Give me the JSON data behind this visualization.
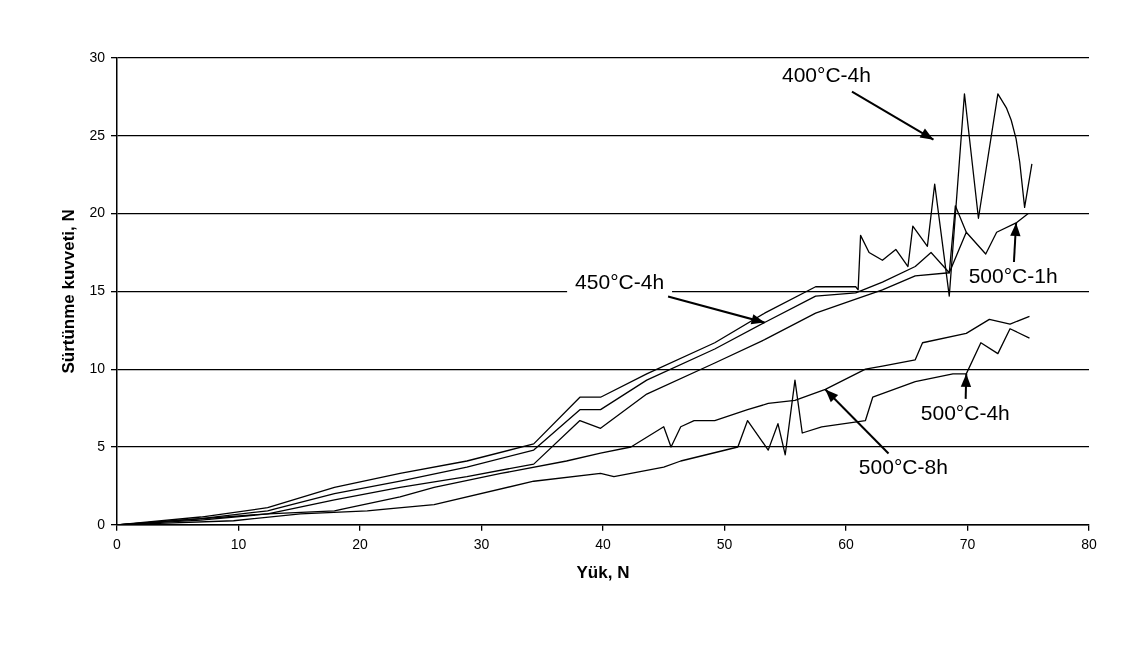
{
  "chart_data": {
    "type": "line",
    "xlabel": "Yük, N",
    "ylabel": "Sürtünme kuvveti, N",
    "xlim": [
      0,
      80
    ],
    "xticks": [
      0,
      10,
      20,
      30,
      40,
      50,
      60,
      70,
      80
    ],
    "ylim": [
      0,
      30
    ],
    "yticks": [
      0,
      5,
      10,
      15,
      20,
      25,
      30
    ],
    "grid": "y",
    "legend": false,
    "marker": "none",
    "line_style": "solid",
    "series": [
      {
        "color": "#000000",
        "x": [
          0,
          6.9,
          12.4,
          17.9,
          23.3,
          28.8,
          34.3,
          38.1,
          39.8,
          43.6,
          49.2,
          53.3,
          57.5,
          60.8,
          61.0,
          61.2,
          61.9,
          63.0,
          64.1,
          65.1,
          65.5,
          66.7,
          67.3,
          68.5,
          69.75,
          70.9,
          72.5,
          73.2,
          73.6,
          74.0,
          74.3,
          74.7,
          75.3
        ],
        "values": [
          0,
          0.5,
          1.1,
          2.4,
          3.3,
          4.1,
          5.2,
          8.2,
          8.2,
          9.7,
          11.7,
          13.6,
          15.3,
          15.3,
          15.1,
          18.6,
          17.5,
          17.0,
          17.7,
          16.6,
          19.2,
          17.9,
          21.9,
          14.7,
          27.7,
          19.7,
          27.7,
          26.8,
          26.0,
          24.8,
          23.3,
          20.4,
          23.2
        ]
      },
      {
        "color": "#000000",
        "x": [
          0,
          6.9,
          12.4,
          17.9,
          23.3,
          28.8,
          34.3,
          38.1,
          39.8,
          43.6,
          49.2,
          53.3,
          57.5,
          60.8,
          63.0,
          65.7,
          67.0,
          68.5,
          69.0,
          69.9
        ],
        "values": [
          0,
          0.4,
          0.9,
          2.0,
          2.8,
          3.7,
          4.8,
          7.4,
          7.4,
          9.3,
          11.3,
          13.0,
          14.7,
          14.9,
          15.6,
          16.6,
          17.5,
          16.2,
          20.5,
          18.8
        ]
      },
      {
        "color": "#000000",
        "x": [
          0,
          6.9,
          12.4,
          17.9,
          23.3,
          28.8,
          34.3,
          38.1,
          39.8,
          43.6,
          49.2,
          53.3,
          57.5,
          60.8,
          63.0,
          65.7,
          68.5,
          69.9,
          71.5,
          72.4,
          74.0,
          75.0
        ],
        "values": [
          0,
          0.3,
          0.7,
          1.6,
          2.4,
          3.1,
          3.9,
          6.7,
          6.2,
          8.4,
          10.4,
          11.9,
          13.6,
          14.5,
          15.1,
          16.0,
          16.2,
          18.8,
          17.4,
          18.8,
          19.4,
          20.0
        ]
      },
      {
        "color": "#000000",
        "x": [
          0,
          12.4,
          17.9,
          23.3,
          26.1,
          31.6,
          37.0,
          39.8,
          42.3,
          45.0,
          45.6,
          46.4,
          47.5,
          49.2,
          51.9,
          53.6,
          55.8,
          58.3,
          61.6,
          63.0,
          65.7,
          66.3,
          69.9,
          71.8,
          73.5,
          75.1
        ],
        "values": [
          0,
          0.7,
          0.9,
          1.8,
          2.4,
          3.3,
          4.1,
          4.6,
          5.0,
          6.3,
          5.0,
          6.3,
          6.7,
          6.7,
          7.4,
          7.8,
          8.0,
          8.7,
          10.0,
          10.2,
          10.6,
          11.7,
          12.3,
          13.2,
          12.9,
          13.4
        ]
      },
      {
        "color": "#000000",
        "x": [
          0,
          9.6,
          15.1,
          20.6,
          26.1,
          34.3,
          39.8,
          40.9,
          45.0,
          46.4,
          51.1,
          51.9,
          53.6,
          54.4,
          55.0,
          55.8,
          56.4,
          58.0,
          61.6,
          62.2,
          65.7,
          68.8,
          69.9,
          71.1,
          72.5,
          73.5,
          75.1
        ],
        "values": [
          0,
          0.26,
          0.7,
          0.9,
          1.3,
          2.8,
          3.3,
          3.1,
          3.7,
          4.1,
          5.0,
          6.7,
          4.8,
          6.5,
          4.5,
          9.3,
          5.9,
          6.3,
          6.7,
          8.2,
          9.2,
          9.7,
          9.7,
          11.7,
          11.0,
          12.6,
          12.0
        ]
      }
    ],
    "annotations": [
      "400°C-4h",
      {
        "text": "450°C-4h",
        "x": 53.3,
        "y": 13.0
      },
      {
        "text": "500°C-1h",
        "x": 74.0,
        "y": 19.4
      },
      {
        "text": "500°C-4h",
        "x": 69.9,
        "y": 9.7
      },
      {
        "text": "500°C-8h",
        "x": 58.3,
        "y": 8.7
      }
    ]
  }
}
